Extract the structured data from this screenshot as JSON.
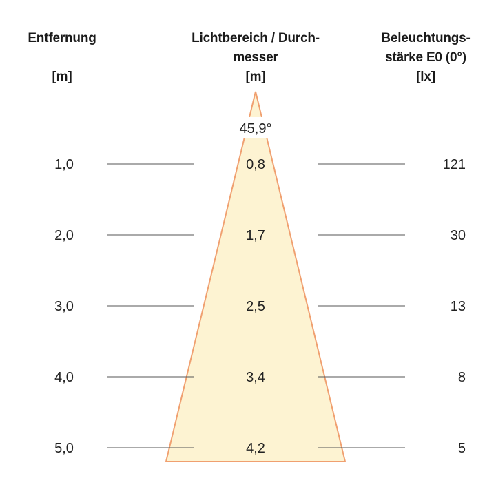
{
  "headers": {
    "distance": {
      "title": "Entfernung",
      "unit": "[m]"
    },
    "diameter": {
      "title_line1": "Lichtbereich / Durch-",
      "title_line2": "messer",
      "unit": "[m]"
    },
    "illuminance": {
      "title_line1": "Beleuchtungs-",
      "title_line2": "stärke E0 (0°)",
      "unit": "[lx]"
    }
  },
  "beam_angle": "45,9°",
  "rows": [
    {
      "distance": "1,0",
      "diameter": "0,8",
      "illuminance": "121"
    },
    {
      "distance": "2,0",
      "diameter": "1,7",
      "illuminance": "30"
    },
    {
      "distance": "3,0",
      "diameter": "2,5",
      "illuminance": "13"
    },
    {
      "distance": "4,0",
      "diameter": "3,4",
      "illuminance": "8"
    },
    {
      "distance": "5,0",
      "diameter": "4,2",
      "illuminance": "5"
    }
  ],
  "colors": {
    "cone_fill": "#fdf3d2",
    "cone_edge": "#f0a070",
    "guide_line": "#555555",
    "text": "#222222"
  }
}
